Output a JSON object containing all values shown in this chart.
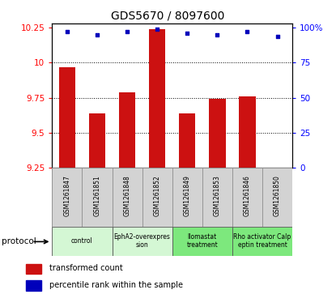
{
  "title": "GDS5670 / 8097600",
  "samples": [
    "GSM1261847",
    "GSM1261851",
    "GSM1261848",
    "GSM1261852",
    "GSM1261849",
    "GSM1261853",
    "GSM1261846",
    "GSM1261850"
  ],
  "red_values": [
    9.97,
    9.64,
    9.79,
    10.24,
    9.64,
    9.74,
    9.76,
    9.25
  ],
  "blue_values": [
    97,
    95,
    97,
    99,
    96,
    95,
    97,
    94
  ],
  "ylim_left": [
    9.25,
    10.28
  ],
  "ylim_right": [
    0,
    103
  ],
  "yticks_left": [
    9.25,
    9.5,
    9.75,
    10.0,
    10.25
  ],
  "yticks_right": [
    0,
    25,
    50,
    75,
    100
  ],
  "ytick_labels_left": [
    "9.25",
    "9.5",
    "9.75",
    "10",
    "10.25"
  ],
  "ytick_labels_right": [
    "0",
    "25",
    "50",
    "75",
    "100%"
  ],
  "groups": [
    {
      "label": "control",
      "indices": [
        0,
        1
      ],
      "color": "#d4f7d4"
    },
    {
      "label": "EphA2-overexpres\nsion",
      "indices": [
        2,
        3
      ],
      "color": "#d4f7d4"
    },
    {
      "label": "Ilomastat\ntreatment",
      "indices": [
        4,
        5
      ],
      "color": "#7de87d"
    },
    {
      "label": "Rho activator Calp\neptin treatment",
      "indices": [
        6,
        7
      ],
      "color": "#7de87d"
    }
  ],
  "bar_color": "#cc1111",
  "dot_color": "#0000bb",
  "bar_width": 0.55,
  "legend_red": "transformed count",
  "legend_blue": "percentile rank within the sample",
  "protocol_label": "protocol"
}
